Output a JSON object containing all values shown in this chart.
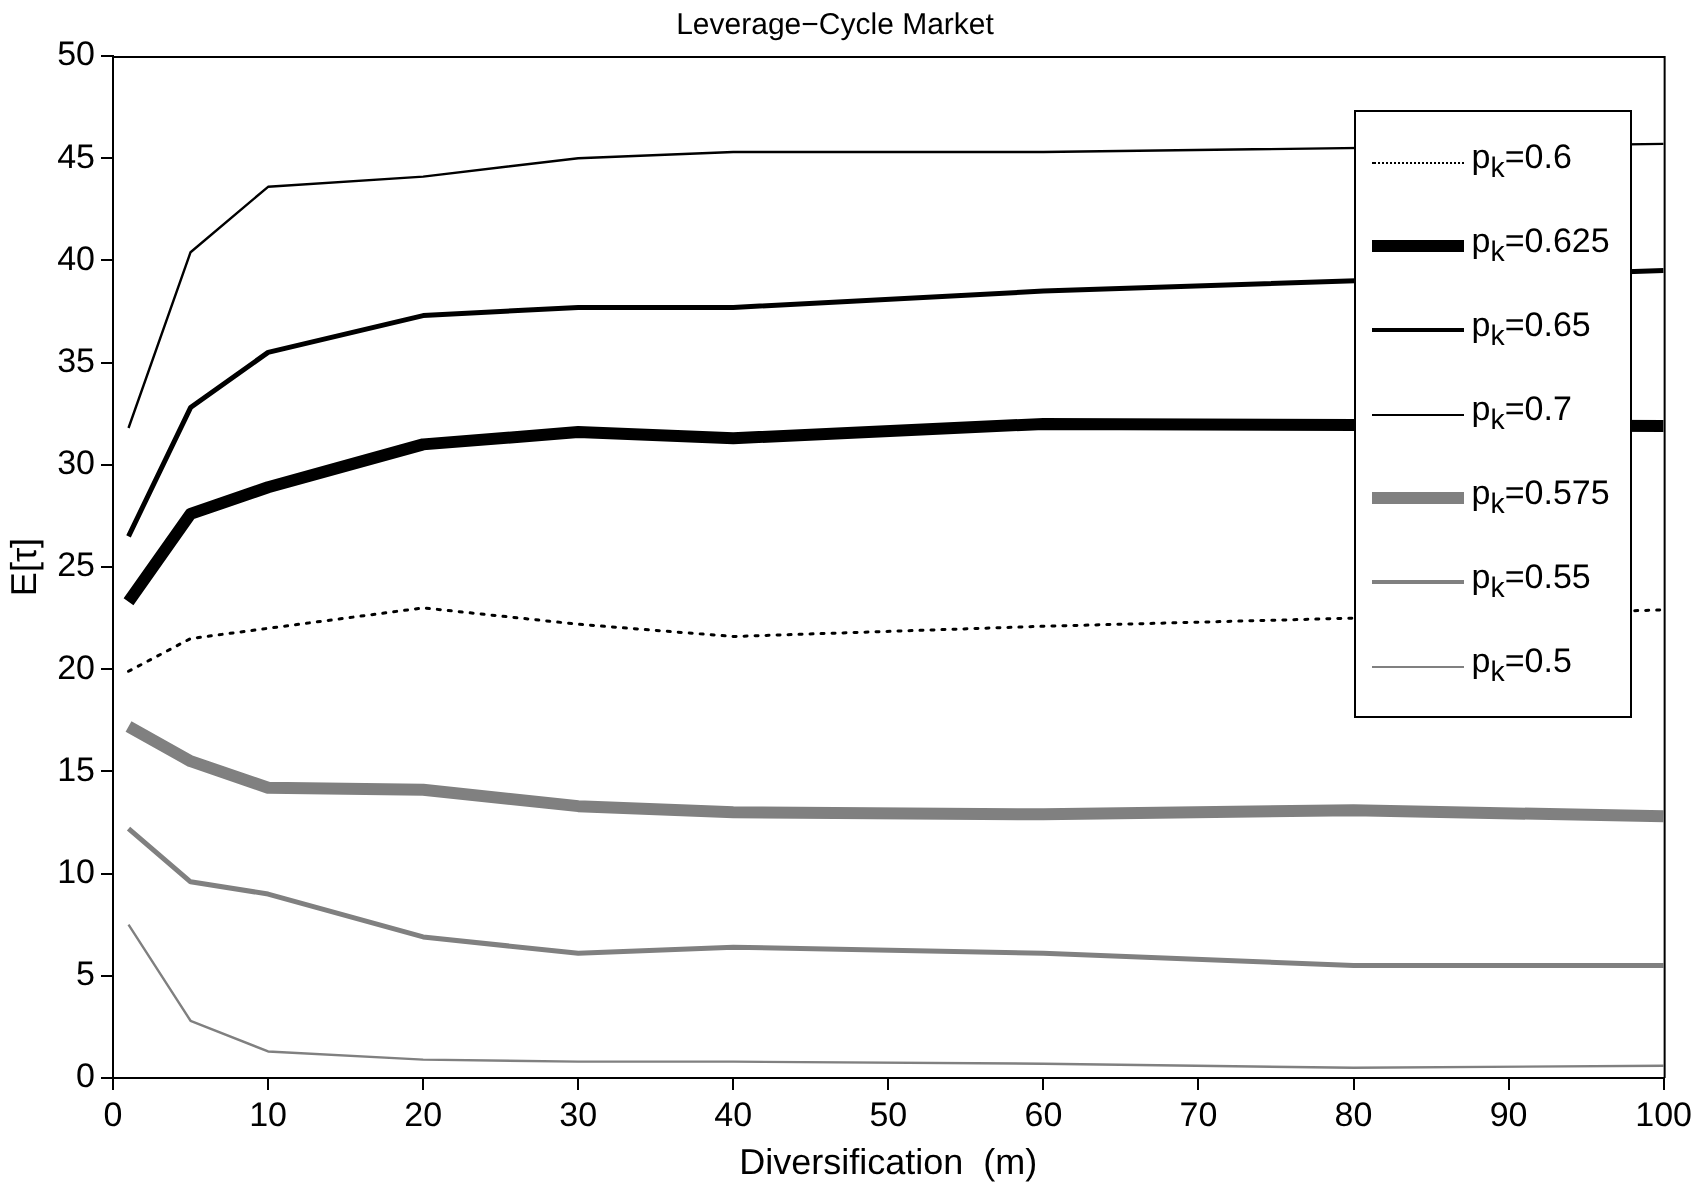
{
  "chart_data": {
    "type": "line",
    "title": "Leverage−Cycle Market",
    "xlabel": "Diversification  (m)",
    "ylabel": "E[τ]",
    "x": [
      1,
      5,
      10,
      20,
      30,
      40,
      60,
      80,
      100
    ],
    "series": [
      {
        "name": "p$_{k}$=0.6",
        "color": "#000000",
        "line_style": "dotted",
        "values": [
          19.9,
          21.5,
          22.0,
          23.0,
          22.2,
          21.6,
          22.1,
          null,
          22.9
        ]
      },
      {
        "name": "p$_{k}$=0.625",
        "color": "#000000",
        "values": [
          23.3,
          27.6,
          28.9,
          31.0,
          31.6,
          31.3,
          32.0,
          null,
          31.9
        ]
      },
      {
        "name": "p$_{k}$=0.65",
        "color": "#000000",
        "values": [
          26.5,
          32.8,
          35.5,
          37.3,
          37.7,
          37.7,
          38.5,
          null,
          39.5
        ]
      },
      {
        "name": "p$_{k}$=0.7",
        "color": "#000000",
        "values": [
          31.8,
          40.4,
          43.6,
          44.1,
          45.0,
          45.3,
          45.3,
          null,
          45.7
        ]
      },
      {
        "name": "p$_{k}$=0.575",
        "color": "#808080",
        "values": [
          17.2,
          15.5,
          14.2,
          14.1,
          13.3,
          13.0,
          12.9,
          13.1,
          12.8
        ]
      },
      {
        "name": "p$_{k}$=0.55",
        "color": "#808080",
        "values": [
          12.2,
          9.6,
          9.0,
          6.9,
          6.1,
          6.4,
          6.1,
          5.5,
          5.5
        ]
      },
      {
        "name": "p$_{k}$=0.5",
        "color": "#808080",
        "values": [
          7.5,
          2.8,
          1.3,
          0.9,
          0.8,
          0.8,
          0.7,
          0.5,
          0.6
        ]
      }
    ],
    "xlim": [
      0,
      100
    ],
    "xticks": [
      0,
      10,
      20,
      30,
      40,
      50,
      60,
      70,
      80,
      90,
      100
    ],
    "ylim": [
      0,
      50
    ],
    "yticks": [
      0,
      5,
      10,
      15,
      20,
      25,
      30,
      35,
      40,
      45,
      50
    ],
    "grid": false,
    "legend": "top right",
    "line_style": "solid",
    "marker": "none"
  }
}
